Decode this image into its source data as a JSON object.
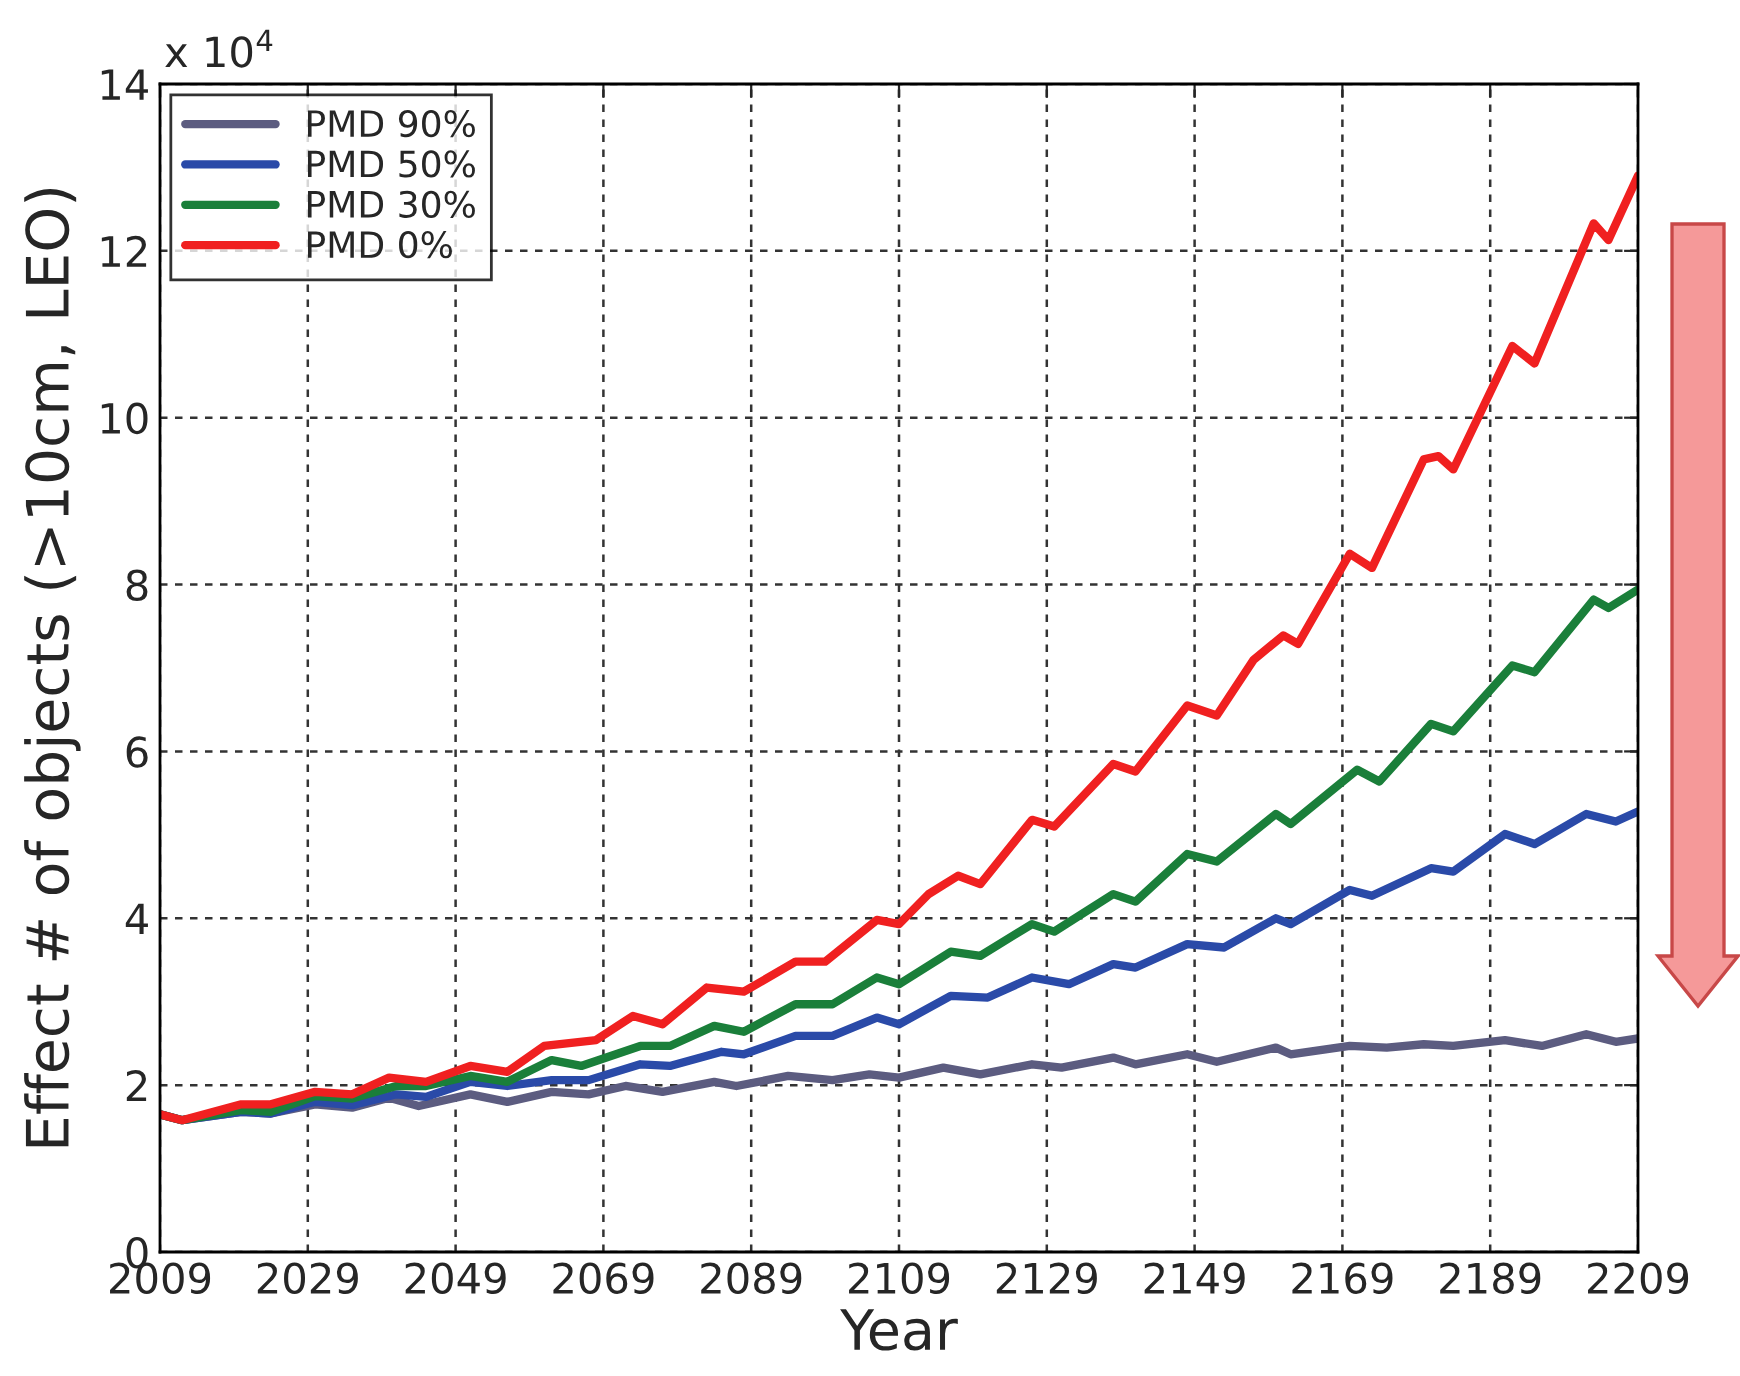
{
  "chart_data": {
    "type": "line",
    "xlabel": "Year",
    "ylabel": "Effect # of objects (>10cm, LEO)",
    "annotations": [
      "x 10$^{4}$"
    ],
    "xlim": [
      2009,
      2209
    ],
    "xticks": [
      2009,
      2029,
      2049,
      2069,
      2089,
      2109,
      2129,
      2149,
      2169,
      2189,
      2209
    ],
    "ylim": [
      0,
      14
    ],
    "yticks": [
      0,
      2,
      4,
      6,
      8,
      10,
      12,
      14
    ],
    "grid": true,
    "legend": "top left",
    "line_style": "solid",
    "marker": "none",
    "series": [
      {
        "name": "PMD 90%",
        "color": "#5c5c80",
        "x": [
          2009,
          2012,
          2020,
          2024,
          2030,
          2035,
          2040,
          2044,
          2051,
          2056,
          2062,
          2067,
          2072,
          2077,
          2084,
          2087,
          2094,
          2100,
          2105,
          2109,
          2115,
          2120,
          2127,
          2131,
          2138,
          2141,
          2148,
          2152,
          2160,
          2162,
          2170,
          2175,
          2180,
          2184,
          2191,
          2196,
          2202,
          2206,
          2209
        ],
        "values": [
          1.65,
          1.58,
          1.68,
          1.66,
          1.77,
          1.73,
          1.85,
          1.75,
          1.89,
          1.8,
          1.92,
          1.89,
          1.99,
          1.92,
          2.04,
          1.99,
          2.11,
          2.06,
          2.13,
          2.09,
          2.21,
          2.13,
          2.25,
          2.21,
          2.33,
          2.25,
          2.37,
          2.28,
          2.45,
          2.37,
          2.47,
          2.45,
          2.49,
          2.47,
          2.54,
          2.47,
          2.61,
          2.52,
          2.56
        ]
      },
      {
        "name": "PMD 50%",
        "color": "#2a4aa8",
        "x": [
          2009,
          2012,
          2020,
          2024,
          2030,
          2035,
          2041,
          2045,
          2051,
          2056,
          2062,
          2067,
          2074,
          2078,
          2085,
          2088,
          2095,
          2100,
          2106,
          2109,
          2116,
          2121,
          2127,
          2132,
          2138,
          2141,
          2148,
          2153,
          2160,
          2162,
          2170,
          2173,
          2181,
          2184,
          2191,
          2195,
          2202,
          2206,
          2209
        ],
        "values": [
          1.65,
          1.58,
          1.68,
          1.66,
          1.8,
          1.76,
          1.89,
          1.86,
          2.04,
          1.99,
          2.06,
          2.06,
          2.25,
          2.23,
          2.4,
          2.37,
          2.59,
          2.59,
          2.81,
          2.73,
          3.07,
          3.05,
          3.29,
          3.21,
          3.45,
          3.41,
          3.69,
          3.65,
          4.0,
          3.93,
          4.34,
          4.27,
          4.6,
          4.56,
          5.01,
          4.89,
          5.25,
          5.16,
          5.28
        ]
      },
      {
        "name": "PMD 30%",
        "color": "#1a7f3a",
        "x": [
          2009,
          2012,
          2020,
          2024,
          2030,
          2035,
          2041,
          2045,
          2051,
          2056,
          2062,
          2066,
          2074,
          2078,
          2084,
          2088,
          2095,
          2100,
          2106,
          2109,
          2116,
          2120,
          2127,
          2130,
          2138,
          2141,
          2148,
          2152,
          2160,
          2162,
          2171,
          2174,
          2181,
          2184,
          2192,
          2195,
          2203,
          2205,
          2209
        ],
        "values": [
          1.65,
          1.58,
          1.7,
          1.68,
          1.87,
          1.84,
          1.99,
          1.99,
          2.11,
          2.04,
          2.3,
          2.23,
          2.47,
          2.47,
          2.71,
          2.64,
          2.97,
          2.97,
          3.29,
          3.21,
          3.6,
          3.55,
          3.93,
          3.84,
          4.29,
          4.2,
          4.77,
          4.68,
          5.25,
          5.13,
          5.78,
          5.64,
          6.33,
          6.24,
          7.03,
          6.95,
          7.82,
          7.72,
          7.94
        ]
      },
      {
        "name": "PMD 0%",
        "color": "#f02020",
        "x": [
          2009,
          2012,
          2020,
          2024,
          2030,
          2035,
          2040,
          2045,
          2051,
          2056,
          2061,
          2068,
          2073,
          2077,
          2083,
          2088,
          2095,
          2099,
          2106,
          2109,
          2113,
          2117,
          2120,
          2127,
          2130,
          2138,
          2141,
          2148,
          2152,
          2157,
          2161,
          2163,
          2170,
          2173,
          2180,
          2182,
          2184,
          2192,
          2195,
          2203,
          2205,
          2209
        ],
        "values": [
          1.65,
          1.58,
          1.77,
          1.77,
          1.92,
          1.89,
          2.09,
          2.04,
          2.23,
          2.16,
          2.47,
          2.54,
          2.83,
          2.73,
          3.17,
          3.12,
          3.48,
          3.48,
          3.98,
          3.93,
          4.29,
          4.51,
          4.41,
          5.18,
          5.1,
          5.85,
          5.76,
          6.55,
          6.43,
          7.1,
          7.39,
          7.29,
          8.37,
          8.2,
          9.5,
          9.54,
          9.38,
          10.86,
          10.65,
          12.33,
          12.13,
          12.9
        ]
      }
    ]
  }
}
